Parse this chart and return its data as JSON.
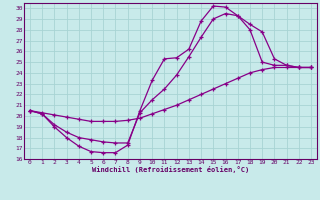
{
  "xlabel": "Windchill (Refroidissement éolien,°C)",
  "xlim": [
    -0.5,
    23.5
  ],
  "ylim": [
    16,
    30.5
  ],
  "xticks": [
    0,
    1,
    2,
    3,
    4,
    5,
    6,
    7,
    8,
    9,
    10,
    11,
    12,
    13,
    14,
    15,
    16,
    17,
    18,
    19,
    20,
    21,
    22,
    23
  ],
  "yticks": [
    16,
    17,
    18,
    19,
    20,
    21,
    22,
    23,
    24,
    25,
    26,
    27,
    28,
    29,
    30
  ],
  "bg_color": "#c8eaea",
  "grid_color": "#a8d4d4",
  "line_color": "#880088",
  "line1_x": [
    0,
    1,
    2,
    3,
    4,
    5,
    6,
    7,
    8,
    9,
    10,
    11,
    12,
    13,
    14,
    15,
    16,
    17,
    18,
    19,
    20,
    21,
    22,
    23
  ],
  "line1_y": [
    20.5,
    20.2,
    19.0,
    18.0,
    17.2,
    16.7,
    16.6,
    16.6,
    17.3,
    20.5,
    23.3,
    25.3,
    25.4,
    26.2,
    28.8,
    30.2,
    30.1,
    29.3,
    28.0,
    25.0,
    24.7,
    24.7,
    24.5,
    24.5
  ],
  "line2_x": [
    0,
    1,
    2,
    3,
    4,
    5,
    6,
    7,
    8,
    9,
    10,
    11,
    12,
    13,
    14,
    15,
    16,
    17,
    18,
    19,
    20,
    21,
    22,
    23
  ],
  "line2_y": [
    20.5,
    20.2,
    19.2,
    18.5,
    18.0,
    17.8,
    17.6,
    17.5,
    17.5,
    20.3,
    21.5,
    22.5,
    23.8,
    25.5,
    27.3,
    29.0,
    29.5,
    29.3,
    28.5,
    27.8,
    25.3,
    24.7,
    24.5,
    24.5
  ],
  "line3_x": [
    0,
    1,
    2,
    3,
    4,
    5,
    6,
    7,
    8,
    9,
    10,
    11,
    12,
    13,
    14,
    15,
    16,
    17,
    18,
    19,
    20,
    21,
    22,
    23
  ],
  "line3_y": [
    20.5,
    20.3,
    20.1,
    19.9,
    19.7,
    19.5,
    19.5,
    19.5,
    19.6,
    19.8,
    20.2,
    20.6,
    21.0,
    21.5,
    22.0,
    22.5,
    23.0,
    23.5,
    24.0,
    24.3,
    24.5,
    24.5,
    24.5,
    24.5
  ]
}
